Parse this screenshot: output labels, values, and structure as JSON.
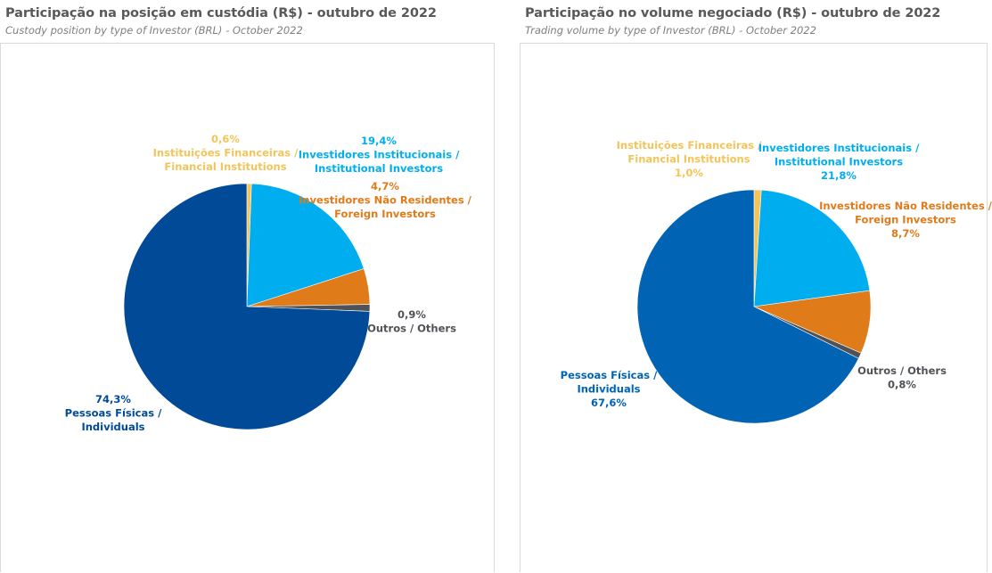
{
  "chart_data": [
    {
      "type": "pie",
      "title": "Participação na posição em custódia (R$) - outubro de 2022",
      "subtitle": "Custody position by type of Investor (BRL) - October 2022",
      "slices": [
        {
          "label_1": "Instituições Financeiras /",
          "label_2": "Financial Institutions",
          "value": 0.6,
          "value_text": "0,6%",
          "color": "#F2C45A"
        },
        {
          "label_1": "Investidores Institucionais /",
          "label_2": "Institutional Investors",
          "value": 19.4,
          "value_text": "19,4%",
          "color": "#00AEEF"
        },
        {
          "label_1": "Investidores Não Residentes /",
          "label_2": "Foreign Investors",
          "value": 4.7,
          "value_text": "4,7%",
          "color": "#E07B1A"
        },
        {
          "label_1": "Outros / Others",
          "label_2": "",
          "value": 0.9,
          "value_text": "0,9%",
          "color": "#4F5257"
        },
        {
          "label_1": "Pessoas Físicas /",
          "label_2": "Individuals",
          "value": 74.3,
          "value_text": "74,3%",
          "color": "#004A98"
        }
      ]
    },
    {
      "type": "pie",
      "title": "Participação no volume negociado (R$) - outubro de 2022",
      "subtitle": "Trading volume by type of Investor (BRL) - October 2022",
      "slices": [
        {
          "label_1": "Instituições Financeiras /",
          "label_2": "Financial Institutions",
          "value": 1.0,
          "value_text": "1,0%",
          "color": "#F2C45A"
        },
        {
          "label_1": "Investidores Institucionais /",
          "label_2": "Institutional Investors",
          "value": 21.8,
          "value_text": "21,8%",
          "color": "#00AEEF"
        },
        {
          "label_1": "Investidores Não Residentes /",
          "label_2": "Foreign Investors",
          "value": 8.7,
          "value_text": "8,7%",
          "color": "#E07B1A"
        },
        {
          "label_1": "Outros / Others",
          "label_2": "",
          "value": 0.8,
          "value_text": "0,8%",
          "color": "#4F5257"
        },
        {
          "label_1": "Pessoas Físicas /",
          "label_2": "Individuals",
          "value": 67.6,
          "value_text": "67,6%",
          "color": "#0063B4"
        }
      ]
    }
  ]
}
